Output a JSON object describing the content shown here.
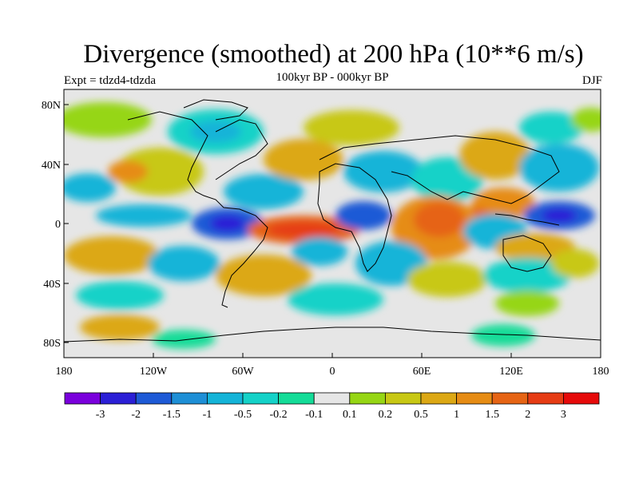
{
  "title": "Divergence (smoothed) at 200 hPa (10**6 m/s)",
  "subtitle": "100kyr BP - 000kyr BP",
  "left_label": "Expt = tdzd4-tdzda",
  "right_label": "DJF",
  "axes": {
    "lat_ticks": [
      "80N",
      "40N",
      "0",
      "40S",
      "80S"
    ],
    "lon_ticks": [
      "180",
      "120W",
      "60W",
      "0",
      "60E",
      "120E",
      "180"
    ]
  },
  "colorbar": {
    "colors": [
      "#7a00dc",
      "#2b1fd6",
      "#1e5ad6",
      "#1e8fd6",
      "#14b4d8",
      "#14d2c8",
      "#14dc98",
      "#e6e6e6",
      "#96d614",
      "#c8c814",
      "#dca814",
      "#e68c14",
      "#e66414",
      "#e63c14",
      "#e60a0a"
    ],
    "labels": [
      "-3",
      "-2",
      "-1.5",
      "-1",
      "-0.5",
      "-0.2",
      "-0.1",
      "0.1",
      "0.2",
      "0.5",
      "1",
      "1.5",
      "2",
      "3"
    ]
  }
}
